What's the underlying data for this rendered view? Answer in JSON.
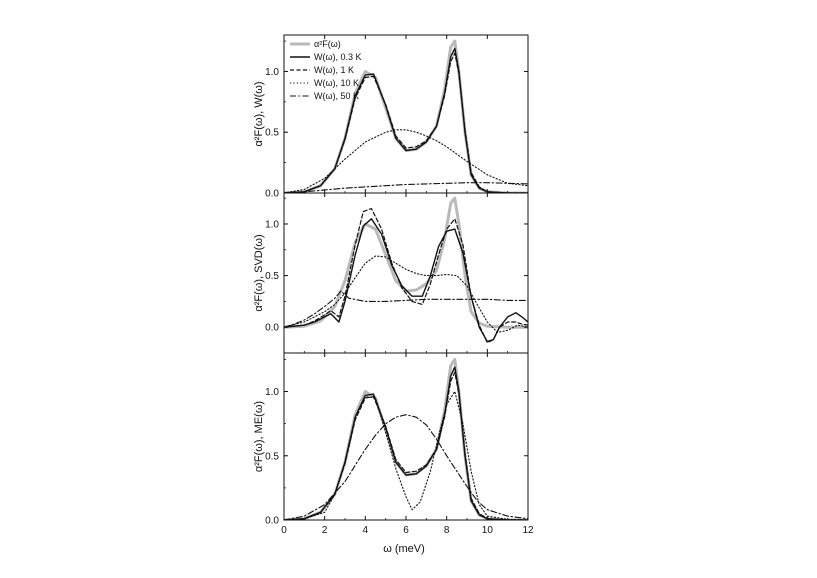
{
  "x_axis": {
    "label": "ω (meV)",
    "ticks": [
      "0",
      "2",
      "4",
      "6",
      "8",
      "10",
      "12"
    ]
  },
  "legend": [
    {
      "label": "α²F(ω)",
      "style": "gray"
    },
    {
      "label": "W(ω), 0.3 K",
      "style": "solid"
    },
    {
      "label": "W(ω), 1 K",
      "style": "dash"
    },
    {
      "label": "W(ω), 10 K",
      "style": "dot"
    },
    {
      "label": "W(ω), 50 K",
      "style": "dashdot"
    }
  ],
  "colors": {
    "reference": "#b9b9b9",
    "lines": "#111111"
  },
  "chart_data": [
    {
      "type": "line",
      "ylabel": "α²F(ω), W(ω)",
      "xlim": [
        0,
        12
      ],
      "ylim": [
        0,
        1.3
      ],
      "yticks": [
        "0.0",
        "0.5",
        "1.0"
      ],
      "legend_position": "top-left",
      "series": [
        {
          "name": "α²F(ω)",
          "style": "gray",
          "x": [
            0,
            1,
            1.8,
            2.5,
            3,
            3.5,
            4,
            4.5,
            5,
            5.5,
            6,
            6.5,
            7,
            7.5,
            7.9,
            8.2,
            8.4,
            8.6,
            8.9,
            9.2,
            9.6,
            10,
            10.5,
            11,
            12
          ],
          "y": [
            0,
            0.01,
            0.06,
            0.2,
            0.45,
            0.82,
            1.0,
            0.95,
            0.7,
            0.45,
            0.35,
            0.36,
            0.42,
            0.55,
            0.85,
            1.2,
            1.25,
            1.0,
            0.5,
            0.15,
            0.04,
            0.01,
            0.005,
            0,
            0
          ]
        },
        {
          "name": "W(ω), 0.3 K",
          "style": "solid",
          "x": [
            0,
            1,
            1.8,
            2.5,
            3,
            3.5,
            4,
            4.4,
            5,
            5.5,
            6,
            6.5,
            7,
            7.5,
            7.9,
            8.2,
            8.4,
            8.6,
            8.9,
            9.2,
            9.6,
            10,
            10.5,
            11,
            12
          ],
          "y": [
            0,
            0.01,
            0.06,
            0.2,
            0.45,
            0.8,
            0.97,
            0.98,
            0.72,
            0.45,
            0.35,
            0.36,
            0.42,
            0.55,
            0.82,
            1.12,
            1.19,
            1.0,
            0.5,
            0.15,
            0.04,
            0.01,
            0.005,
            0,
            0
          ]
        },
        {
          "name": "W(ω), 1 K",
          "style": "dash",
          "x": [
            0,
            1,
            1.8,
            2.5,
            3,
            3.5,
            4,
            4.4,
            5,
            5.5,
            6,
            6.5,
            7,
            7.5,
            7.9,
            8.2,
            8.4,
            8.6,
            8.9,
            9.2,
            9.6,
            10,
            10.5,
            11,
            12
          ],
          "y": [
            0,
            0.01,
            0.06,
            0.2,
            0.44,
            0.78,
            0.95,
            0.96,
            0.73,
            0.47,
            0.37,
            0.38,
            0.43,
            0.55,
            0.8,
            1.08,
            1.15,
            0.98,
            0.52,
            0.17,
            0.05,
            0.01,
            0.005,
            0,
            0
          ]
        },
        {
          "name": "W(ω), 10 K",
          "style": "dot",
          "x": [
            0,
            1,
            2,
            3,
            4,
            5,
            5.5,
            6,
            6.5,
            7,
            7.5,
            8,
            8.5,
            9,
            10,
            11,
            12
          ],
          "y": [
            0,
            0.03,
            0.12,
            0.28,
            0.42,
            0.5,
            0.52,
            0.52,
            0.5,
            0.47,
            0.43,
            0.38,
            0.32,
            0.26,
            0.15,
            0.08,
            0.06
          ]
        },
        {
          "name": "W(ω), 50 K",
          "style": "dashdot",
          "x": [
            0,
            1,
            2,
            3,
            4,
            5,
            6,
            7,
            8,
            9,
            10,
            11,
            12
          ],
          "y": [
            0,
            0.01,
            0.025,
            0.04,
            0.05,
            0.06,
            0.07,
            0.075,
            0.08,
            0.085,
            0.085,
            0.08,
            0.075
          ]
        }
      ]
    },
    {
      "type": "line",
      "ylabel": "α²F(ω), SVD(ω)",
      "xlim": [
        0,
        12
      ],
      "ylim": [
        -0.25,
        1.3
      ],
      "yticks": [
        "0.0",
        "0.5",
        "1.0"
      ],
      "series": [
        {
          "name": "α²F(ω)",
          "style": "gray",
          "x": [
            0,
            1,
            1.8,
            2.5,
            3,
            3.5,
            4,
            4.5,
            5,
            5.5,
            6,
            6.5,
            7,
            7.5,
            7.9,
            8.2,
            8.4,
            8.6,
            8.9,
            9.2,
            9.6,
            10,
            10.5,
            11,
            12
          ],
          "y": [
            0,
            0.01,
            0.06,
            0.2,
            0.45,
            0.82,
            1.0,
            0.95,
            0.7,
            0.45,
            0.35,
            0.36,
            0.42,
            0.55,
            0.85,
            1.2,
            1.25,
            1.0,
            0.5,
            0.15,
            0.04,
            0.01,
            0.005,
            0,
            0
          ]
        },
        {
          "name": "W(ω), 0.3 K",
          "style": "solid",
          "x": [
            0,
            0.5,
            1,
            1.5,
            2,
            2.3,
            2.7,
            3,
            3.5,
            3.9,
            4.3,
            4.8,
            5.3,
            5.8,
            6.3,
            6.8,
            7.2,
            7.6,
            8.0,
            8.4,
            8.8,
            9.2,
            9.6,
            10.0,
            10.3,
            10.6,
            11,
            11.4,
            11.7,
            12
          ],
          "y": [
            0,
            0.01,
            0.02,
            0.05,
            0.1,
            0.13,
            0.05,
            0.25,
            0.7,
            0.98,
            1.05,
            0.9,
            0.6,
            0.4,
            0.3,
            0.3,
            0.5,
            0.78,
            0.93,
            0.95,
            0.72,
            0.3,
            0,
            -0.14,
            -0.12,
            0,
            0.1,
            0.14,
            0.1,
            0.05
          ]
        },
        {
          "name": "W(ω), 1 K",
          "style": "dash",
          "x": [
            0,
            0.5,
            1,
            1.5,
            2,
            2.3,
            2.7,
            3,
            3.5,
            3.9,
            4.3,
            4.8,
            5.3,
            5.8,
            6.3,
            6.8,
            7.2,
            7.6,
            8.0,
            8.4,
            8.8,
            9.2,
            9.6,
            10.0,
            10.3,
            10.6,
            11,
            11.4,
            11.7,
            12
          ],
          "y": [
            0,
            0.01,
            0.02,
            0.06,
            0.12,
            0.16,
            0.1,
            0.3,
            0.8,
            1.12,
            1.15,
            0.95,
            0.62,
            0.38,
            0.25,
            0.22,
            0.42,
            0.7,
            0.95,
            1.05,
            0.8,
            0.3,
            0.02,
            -0.15,
            -0.12,
            0,
            0.05,
            0.05,
            0.03,
            0.02
          ]
        },
        {
          "name": "W(ω), 10 K",
          "style": "dot",
          "x": [
            0,
            1,
            2,
            2.5,
            3,
            3.5,
            4,
            4.5,
            5,
            5.5,
            6,
            6.5,
            7,
            7.5,
            8,
            8.5,
            9,
            9.5,
            10,
            10.5,
            11,
            11.5,
            12
          ],
          "y": [
            0,
            0.05,
            0.15,
            0.22,
            0.33,
            0.48,
            0.62,
            0.69,
            0.68,
            0.62,
            0.56,
            0.52,
            0.5,
            0.5,
            0.51,
            0.5,
            0.4,
            0.22,
            0.05,
            -0.05,
            -0.03,
            0.02,
            0
          ]
        },
        {
          "name": "W(ω), 50 K",
          "style": "dashdot",
          "x": [
            0,
            0.5,
            1,
            1.5,
            2,
            2.5,
            2.8,
            3.2,
            4,
            5,
            6,
            7,
            8,
            9,
            10,
            11,
            12
          ],
          "y": [
            0,
            0.03,
            0.07,
            0.13,
            0.2,
            0.28,
            0.35,
            0.28,
            0.25,
            0.25,
            0.26,
            0.27,
            0.27,
            0.27,
            0.27,
            0.26,
            0.26
          ]
        }
      ]
    },
    {
      "type": "line",
      "ylabel": "α²F(ω), ME(ω)",
      "xlim": [
        0,
        12
      ],
      "ylim": [
        0,
        1.3
      ],
      "yticks": [
        "0.0",
        "0.5",
        "1.0"
      ],
      "series": [
        {
          "name": "α²F(ω)",
          "style": "gray",
          "x": [
            0,
            1,
            1.8,
            2.5,
            3,
            3.5,
            4,
            4.5,
            5,
            5.5,
            6,
            6.5,
            7,
            7.5,
            7.9,
            8.2,
            8.4,
            8.6,
            8.9,
            9.2,
            9.6,
            10,
            10.5,
            11,
            12
          ],
          "y": [
            0,
            0.01,
            0.06,
            0.2,
            0.45,
            0.82,
            1.0,
            0.95,
            0.7,
            0.45,
            0.35,
            0.36,
            0.42,
            0.55,
            0.85,
            1.2,
            1.25,
            1.0,
            0.5,
            0.15,
            0.04,
            0.01,
            0.005,
            0,
            0
          ]
        },
        {
          "name": "W(ω), 0.3 K",
          "style": "solid",
          "x": [
            0,
            1,
            1.8,
            2.5,
            3,
            3.5,
            4,
            4.4,
            5,
            5.5,
            6,
            6.5,
            7,
            7.5,
            7.9,
            8.2,
            8.4,
            8.6,
            8.9,
            9.2,
            9.6,
            10,
            10.5,
            11,
            12
          ],
          "y": [
            0,
            0.01,
            0.06,
            0.2,
            0.45,
            0.8,
            0.97,
            0.98,
            0.72,
            0.45,
            0.35,
            0.36,
            0.42,
            0.55,
            0.82,
            1.12,
            1.19,
            1.0,
            0.5,
            0.15,
            0.04,
            0.01,
            0.005,
            0,
            0
          ]
        },
        {
          "name": "W(ω), 1 K",
          "style": "dash",
          "x": [
            0,
            1,
            1.8,
            2.5,
            3,
            3.5,
            4,
            4.4,
            5,
            5.5,
            6,
            6.5,
            7,
            7.5,
            7.9,
            8.2,
            8.4,
            8.6,
            8.9,
            9.2,
            9.6,
            10,
            10.5,
            11,
            12
          ],
          "y": [
            0,
            0.01,
            0.06,
            0.2,
            0.44,
            0.78,
            0.95,
            0.96,
            0.73,
            0.47,
            0.37,
            0.38,
            0.43,
            0.55,
            0.8,
            1.08,
            1.15,
            0.98,
            0.52,
            0.17,
            0.05,
            0.01,
            0.005,
            0,
            0
          ]
        },
        {
          "name": "W(ω), 10 K",
          "style": "dot",
          "x": [
            0,
            1,
            2,
            2.5,
            3,
            3.5,
            4,
            4.5,
            5,
            5.5,
            6,
            6.3,
            6.7,
            7.2,
            7.6,
            8,
            8.4,
            8.8,
            9.2,
            9.6,
            10,
            11,
            12
          ],
          "y": [
            0,
            0.01,
            0.06,
            0.2,
            0.45,
            0.8,
            0.96,
            0.95,
            0.68,
            0.4,
            0.18,
            0.08,
            0.14,
            0.38,
            0.65,
            0.9,
            1.0,
            0.75,
            0.38,
            0.12,
            0.03,
            0.005,
            0
          ]
        },
        {
          "name": "W(ω), 50 K",
          "style": "dashdot",
          "x": [
            0,
            1,
            2,
            3,
            4,
            4.5,
            5,
            5.5,
            6,
            6.5,
            7,
            7.5,
            8,
            8.5,
            9,
            9.5,
            10,
            11,
            12
          ],
          "y": [
            0,
            0.03,
            0.12,
            0.3,
            0.55,
            0.66,
            0.75,
            0.8,
            0.82,
            0.8,
            0.74,
            0.63,
            0.5,
            0.38,
            0.26,
            0.15,
            0.08,
            0.03,
            0.01
          ]
        }
      ]
    }
  ]
}
